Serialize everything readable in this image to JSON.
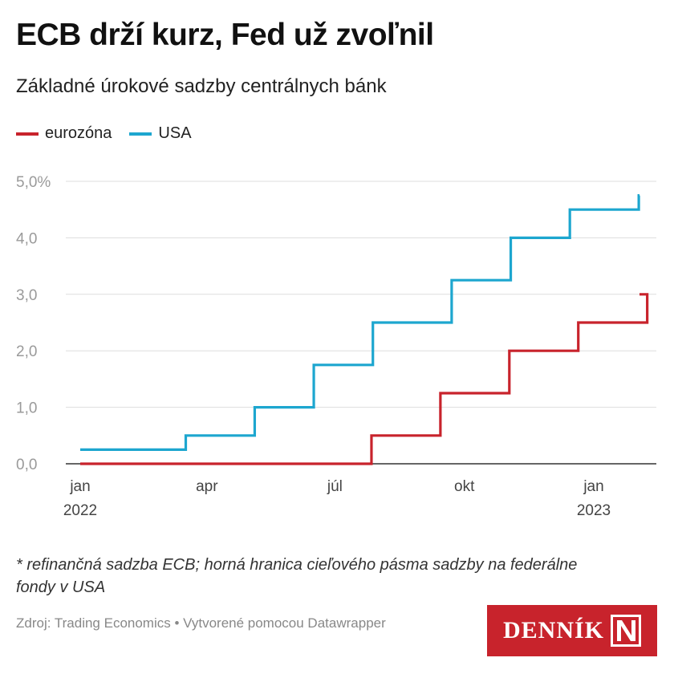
{
  "header": {
    "title": "ECB drží kurz, Fed už zvoľnil",
    "subtitle": "Základné úrokové sadzby centrálnych bánk"
  },
  "footer": {
    "footnote": "* refinančná sadzba ECB; horná hranica cieľového pásma sadzby na federálne fondy v USA",
    "source": "Zdroj: Trading Economics • Vytvorené pomocou Datawrapper",
    "logo_text": "DENNÍK N"
  },
  "chart_data": {
    "type": "line",
    "step": true,
    "title": "ECB drží kurz, Fed už zvoľnil",
    "subtitle": "Základné úrokové sadzby centrálnych bánk",
    "xlim": [
      "2022-01-01",
      "2023-02-28"
    ],
    "ylim": [
      0,
      5
    ],
    "y_ticks": [
      {
        "value": 0,
        "label": "0,0"
      },
      {
        "value": 1,
        "label": "1,0"
      },
      {
        "value": 2,
        "label": "2,0"
      },
      {
        "value": 3,
        "label": "3,0"
      },
      {
        "value": 4,
        "label": "4,0"
      },
      {
        "value": 5,
        "label": "5,0%"
      }
    ],
    "x_ticks": [
      {
        "date": "2022-01-01",
        "label": "jan",
        "sublabel": "2022"
      },
      {
        "date": "2022-04-01",
        "label": "apr",
        "sublabel": ""
      },
      {
        "date": "2022-07-01",
        "label": "júl",
        "sublabel": ""
      },
      {
        "date": "2022-10-01",
        "label": "okt",
        "sublabel": ""
      },
      {
        "date": "2023-01-01",
        "label": "jan",
        "sublabel": "2023"
      }
    ],
    "grid": true,
    "legend": "top-left",
    "series": [
      {
        "name": "eurozóna",
        "color": "#c8232c",
        "points": [
          [
            "2022-01-01",
            0
          ],
          [
            "2022-07-27",
            0.5
          ],
          [
            "2022-09-14",
            1.25
          ],
          [
            "2022-11-02",
            2.0
          ],
          [
            "2022-12-21",
            2.5
          ],
          [
            "2023-02-08",
            3.0
          ]
        ]
      },
      {
        "name": "USA",
        "color": "#1da6cf",
        "points": [
          [
            "2022-01-01",
            0.25
          ],
          [
            "2022-03-17",
            0.5
          ],
          [
            "2022-05-05",
            1.0
          ],
          [
            "2022-06-16",
            1.75
          ],
          [
            "2022-07-28",
            2.5
          ],
          [
            "2022-09-22",
            3.25
          ],
          [
            "2022-11-03",
            4.0
          ],
          [
            "2022-12-15",
            4.5
          ],
          [
            "2023-02-02",
            4.75
          ]
        ]
      }
    ]
  }
}
